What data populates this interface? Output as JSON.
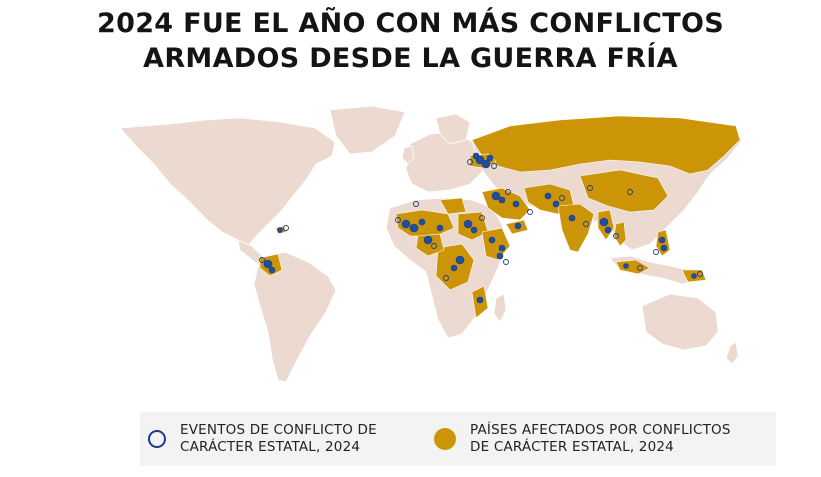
{
  "title": {
    "line1": "2024 FUE EL AÑO CON MÁS CONFLICTOS",
    "line2": "ARMADOS DESDE LA GUERRA FRÍA"
  },
  "colors": {
    "land": "#ecd9cf",
    "affected": "#cc9407",
    "event": "#1f4e9e",
    "event_outline": "#1f3a8a",
    "legend_bg": "#f3f3f3"
  },
  "legend": {
    "events_line1": "EVENTOS DE CONFLICTO DE",
    "events_line2": "CARÁCTER ESTATAL, 2024",
    "countries_line1": "PAÍSES AFECTADOS POR CONFLICTOS",
    "countries_line2": "DE CARÁCTER ESTATAL, 2024"
  }
}
